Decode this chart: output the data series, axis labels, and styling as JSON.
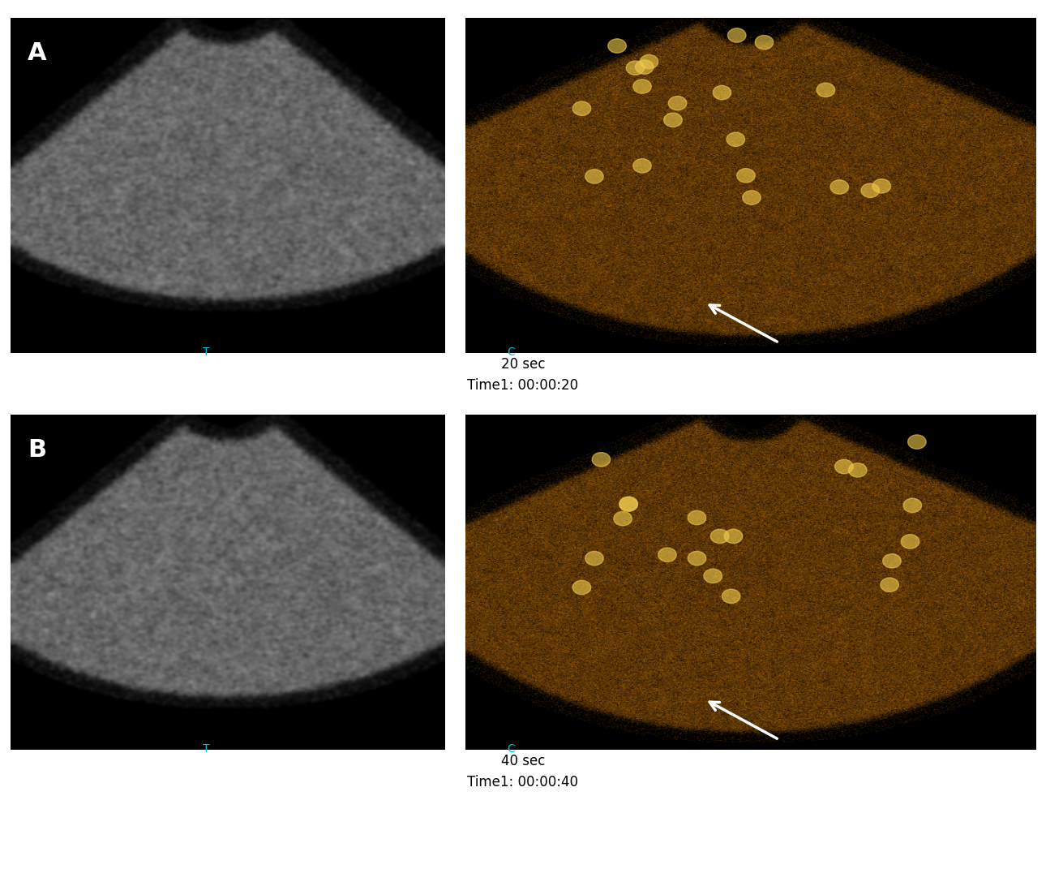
{
  "figure_width": 12.9,
  "figure_height": 10.87,
  "background_color": "#ffffff",
  "panel_bg": "#000000",
  "row1_label_top": "20 sec",
  "row1_label_bottom": "Time1: 00:00:20",
  "row2_label_top": "40 sec",
  "row2_label_bottom": "Time1: 00:00:40",
  "label_fontsize": 12,
  "panel_labels": [
    "A",
    "B"
  ],
  "panel_label_color": "#ffffff",
  "panel_label_bg": "#000000",
  "panel_label_fontsize": 22,
  "arrow_color": "#ffffff",
  "tag_color": "#00bcd4"
}
